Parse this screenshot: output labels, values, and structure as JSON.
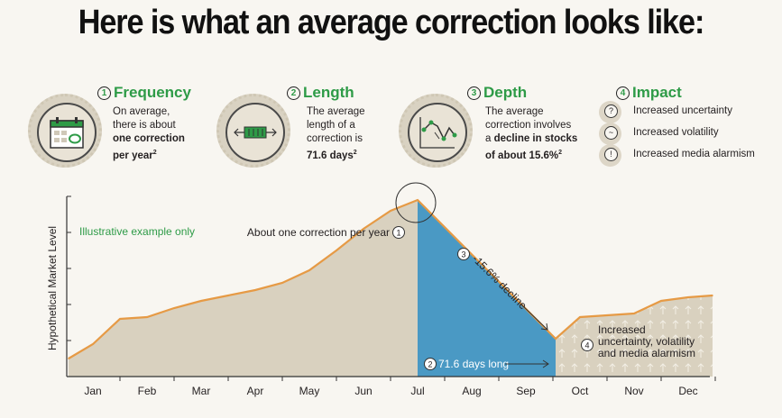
{
  "title": "Here is what an average correction looks like:",
  "blocks": {
    "frequency": {
      "num": "1",
      "heading": "Frequency",
      "lines": [
        "On average,",
        "there is about"
      ],
      "bold_lines": [
        "one correction",
        "per year"
      ],
      "sup": "2"
    },
    "length": {
      "num": "2",
      "heading": "Length",
      "lines": [
        "The average",
        "length of a",
        "correction is"
      ],
      "bold_lines": [
        "71.6 days"
      ],
      "sup": "2"
    },
    "depth": {
      "num": "3",
      "heading": "Depth",
      "lines": [
        "The average",
        "correction involves"
      ],
      "prefix": "a",
      "bold_lines": [
        "decline in stocks",
        "of about 15.6%"
      ],
      "sup": "2"
    },
    "impact": {
      "num": "4",
      "heading": "Impact",
      "items": [
        {
          "icon": "question-icon",
          "glyph": "?",
          "label": "Increased uncertainty"
        },
        {
          "icon": "wave-icon",
          "glyph": "~",
          "label": "Increased volatility"
        },
        {
          "icon": "warning-icon",
          "glyph": "!",
          "label": "Increased media alarmism"
        }
      ]
    }
  },
  "colors": {
    "accent_green": "#2e9b47",
    "line_orange": "#e69a45",
    "area_beige": "#d9d1bf",
    "decline_blue": "#4a99c4"
  },
  "chart_data": {
    "type": "area",
    "ylabel": "Hypothetical Market Level",
    "categories": [
      "Jan",
      "Feb",
      "Mar",
      "Apr",
      "May",
      "Jun",
      "Jul",
      "Aug",
      "Sep",
      "Oct",
      "Nov",
      "Dec"
    ],
    "x": [
      -0.45,
      0.0,
      0.5,
      1.0,
      1.5,
      2.0,
      2.5,
      3.0,
      3.5,
      4.0,
      4.5,
      5.0,
      5.5,
      6.0,
      8.55,
      9.0,
      9.5,
      10.0,
      10.5,
      11.0,
      11.45
    ],
    "y": [
      0.5,
      0.9,
      1.6,
      1.65,
      1.9,
      2.1,
      2.25,
      2.4,
      2.6,
      2.95,
      3.5,
      4.1,
      4.6,
      4.9,
      1.05,
      1.65,
      1.7,
      1.75,
      2.1,
      2.2,
      2.25
    ],
    "ylim": [
      0,
      5
    ],
    "grid": false,
    "peak_x": 6.0,
    "trough_x": 8.55,
    "annotations": {
      "illustrative": "Illustrative example only",
      "peak_label": "About one correction per year",
      "peak_num": "1",
      "decline_label": "-15.6% decline",
      "decline_num": "3",
      "length_label": "71.6 days long",
      "length_num": "2",
      "impact_num": "4",
      "impact_lines": [
        "Increased",
        "uncertainty, volatility",
        "and media alarmism"
      ]
    }
  }
}
